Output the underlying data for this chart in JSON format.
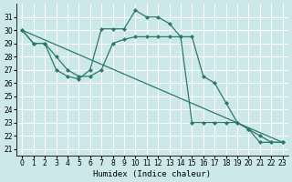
{
  "xlabel": "Humidex (Indice chaleur)",
  "bg_color": "#cce8e8",
  "grid_color": "#ffffff",
  "line_color": "#2a7a6a",
  "xlim": [
    -0.5,
    23.5
  ],
  "ylim": [
    20.5,
    32.0
  ],
  "yticks": [
    21,
    22,
    23,
    24,
    25,
    26,
    27,
    28,
    29,
    30,
    31
  ],
  "xticks": [
    0,
    1,
    2,
    3,
    4,
    5,
    6,
    7,
    8,
    9,
    10,
    11,
    12,
    13,
    14,
    15,
    16,
    17,
    18,
    19,
    20,
    21,
    22,
    23
  ],
  "curve1_x": [
    0,
    1,
    2,
    3,
    4,
    5,
    6,
    7,
    8,
    9,
    10,
    11,
    12,
    13,
    14,
    15,
    16,
    17,
    18,
    19,
    20,
    21,
    22,
    23
  ],
  "curve1_y": [
    30.0,
    29.0,
    29.0,
    27.0,
    26.5,
    26.3,
    27.0,
    30.1,
    30.1,
    30.1,
    31.5,
    31.0,
    31.0,
    30.5,
    29.5,
    29.5,
    26.5,
    26.0,
    24.5,
    23.0,
    22.5,
    21.5,
    21.5,
    21.5
  ],
  "curve2_x": [
    0,
    1,
    2,
    3,
    4,
    5,
    6,
    7,
    8,
    9,
    10,
    11,
    12,
    13,
    14,
    15,
    16,
    17,
    18,
    19,
    20,
    21,
    22,
    23
  ],
  "curve2_y": [
    30.0,
    29.0,
    29.0,
    28.0,
    27.0,
    26.5,
    26.5,
    27.0,
    29.0,
    29.3,
    29.5,
    29.5,
    29.5,
    29.5,
    29.5,
    23.0,
    23.0,
    23.0,
    23.0,
    23.0,
    22.5,
    22.0,
    21.5,
    21.5
  ],
  "line_x": [
    0,
    23
  ],
  "line_y": [
    30.0,
    21.5
  ],
  "xlabel_fontsize": 6.5,
  "tick_fontsize": 5.5
}
